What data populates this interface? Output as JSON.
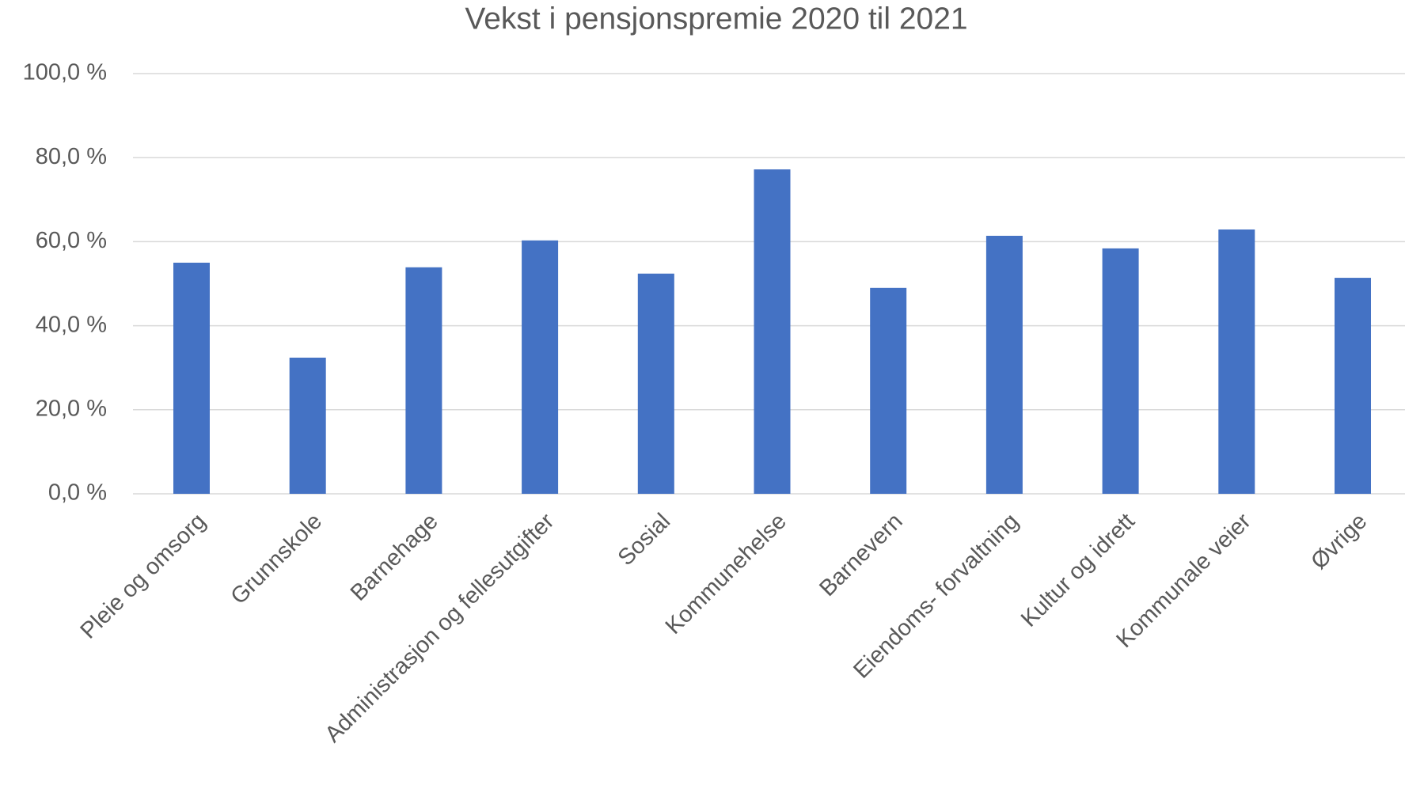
{
  "chart_data": {
    "type": "bar",
    "title": "Vekst i pensjonspremie 2020 til 2021",
    "categories": [
      "Pleie og omsorg",
      "Grunnskole",
      "Barnehage",
      "Administrasjon og fellesutgifter",
      "Sosial",
      "Kommunehelse",
      "Barnevern",
      "Eiendoms- forvaltning",
      "Kultur og idrett",
      "Kommunale veier",
      "Øvrige"
    ],
    "values": [
      55.0,
      32.4,
      53.9,
      60.3,
      52.4,
      77.2,
      49.0,
      61.4,
      58.4,
      62.9,
      51.4
    ],
    "color": "#4472c4",
    "ylim": [
      0,
      100
    ],
    "yticks": [
      {
        "value": 0,
        "label": "0,0 %"
      },
      {
        "value": 20,
        "label": "20,0 %"
      },
      {
        "value": 40,
        "label": "40,0 %"
      },
      {
        "value": 60,
        "label": "60,0 %"
      },
      {
        "value": 80,
        "label": "80,0 %"
      },
      {
        "value": 100,
        "label": "100,0 %"
      }
    ],
    "grid": true
  }
}
